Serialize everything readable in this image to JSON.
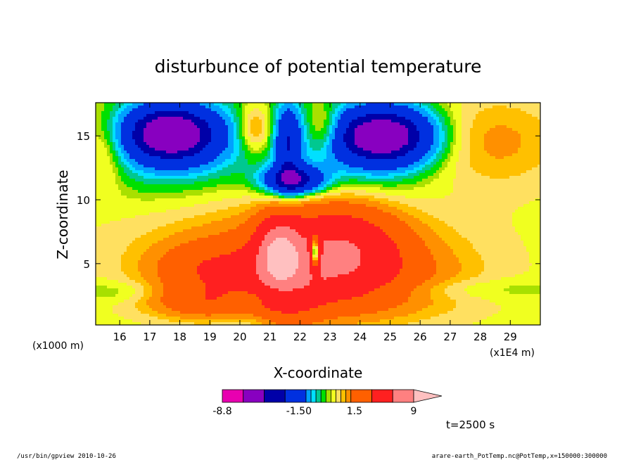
{
  "chart_data": {
    "type": "heatmap",
    "title": "disturbunce of potential temperature",
    "xlabel": "X-coordinate",
    "ylabel": "Z-coordinate",
    "x_unit_label": "(x1E4 m)",
    "y_unit_label": "(x1000 m)",
    "xlim": [
      15.2,
      30.0
    ],
    "ylim": [
      0.2,
      17.6
    ],
    "x_ticks": [
      16,
      17,
      18,
      19,
      20,
      21,
      22,
      23,
      24,
      25,
      26,
      27,
      28,
      29
    ],
    "y_ticks": [
      5,
      10,
      15
    ],
    "levels": [
      -8.8,
      -6,
      -4,
      -3,
      -1.5,
      -1,
      -0.7,
      -0.4,
      -0.1,
      0.1,
      0.4,
      0.7,
      1,
      1.5,
      3,
      6,
      9
    ],
    "colors": [
      "#e800b0",
      "#8800c0",
      "#0000a8",
      "#0030e0",
      "#00a0ff",
      "#00e0ff",
      "#00c890",
      "#00e000",
      "#a8e000",
      "#f0ff20",
      "#ffe060",
      "#ffc000",
      "#ff9000",
      "#ff6000",
      "#ff2020",
      "#ff8080",
      "#ffc0c0"
    ],
    "colorbar_labels": [
      {
        "value": -8.8,
        "text": "-8.8"
      },
      {
        "value": -1.5,
        "text": "-1.50"
      },
      {
        "value": 1.5,
        "text": "1.5"
      },
      {
        "value": 9,
        "text": "9"
      }
    ],
    "annotation": "t=2500 s",
    "field_features": [
      {
        "value": 6.5,
        "x": 21.3,
        "z": 6.0,
        "sx": 0.45,
        "sz": 1.6
      },
      {
        "value": 4.5,
        "x": 23.3,
        "z": 6.0,
        "sx": 1.3,
        "sz": 2.2
      },
      {
        "value": 3.0,
        "x": 21.5,
        "z": 3.5,
        "sx": 0.8,
        "sz": 2.2
      },
      {
        "value": 2.0,
        "x": 19.2,
        "z": 4.5,
        "sx": 1.4,
        "sz": 1.4
      },
      {
        "value": 1.8,
        "x": 19.0,
        "z": 2.0,
        "sx": 1.4,
        "sz": 0.9
      },
      {
        "value": 1.7,
        "x": 23.5,
        "z": 3.5,
        "sx": 2.5,
        "sz": 2.0
      },
      {
        "value": 1.3,
        "x": 21.8,
        "z": 6.5,
        "sx": 3.5,
        "sz": 3.0
      },
      {
        "value": -7.5,
        "x": 22.5,
        "z": 5.8,
        "sx": 0.12,
        "sz": 1.0
      },
      {
        "value": -5.0,
        "x": 17.7,
        "z": 15.2,
        "sx": 1.1,
        "sz": 1.6
      },
      {
        "value": -5.0,
        "x": 24.8,
        "z": 15.0,
        "sx": 1.2,
        "sz": 1.6
      },
      {
        "value": -4.0,
        "x": 21.8,
        "z": 11.5,
        "sx": 0.7,
        "sz": 0.8
      },
      {
        "value": -2.5,
        "x": 21.6,
        "z": 14.5,
        "sx": 0.3,
        "sz": 2.2
      },
      {
        "value": -1.0,
        "x": 17.8,
        "z": 14.0,
        "sx": 2.3,
        "sz": 3.0
      },
      {
        "value": -1.0,
        "x": 24.5,
        "z": 14.0,
        "sx": 2.5,
        "sz": 3.0
      },
      {
        "value": -1.4,
        "x": 21.0,
        "z": 2.5,
        "sx": 0.9,
        "sz": 0.5
      },
      {
        "value": 1.5,
        "x": 20.5,
        "z": 15.5,
        "sx": 0.4,
        "sz": 1.3
      },
      {
        "value": 1.5,
        "x": 22.8,
        "z": 15.5,
        "sx": 0.4,
        "sz": 1.3
      },
      {
        "value": 1.2,
        "x": 28.0,
        "z": 14.5,
        "sx": 1.8,
        "sz": 2.5
      },
      {
        "value": 1.0,
        "x": 15.5,
        "z": 14.0,
        "sx": 0.5,
        "sz": 2.0
      },
      {
        "value": -0.6,
        "x": 20.5,
        "z": 0.8,
        "sx": 0.8,
        "sz": 1.0
      },
      {
        "value": -0.5,
        "x": 27.0,
        "z": 3.0,
        "sx": 3.0,
        "sz": 0.6
      },
      {
        "value": -0.5,
        "x": 16.0,
        "z": 2.8,
        "sx": 1.2,
        "sz": 0.6
      }
    ]
  },
  "footer": {
    "left": "/usr/bin/gpview   2010-10-26",
    "right": "arare-earth_PotTemp.nc@PotTemp,x=150000:300000"
  }
}
